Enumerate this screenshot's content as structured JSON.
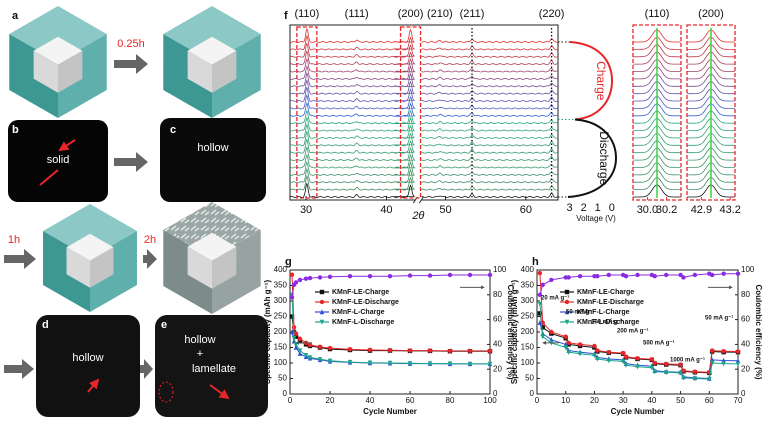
{
  "schematic": {
    "a": "a",
    "b": "b",
    "c": "c",
    "d": "d",
    "e": "e",
    "time1": "0.25h",
    "time2": "1h",
    "time3": "2h",
    "b_text": "solid",
    "c_text": "hollow",
    "d_text": "hollow",
    "e_text1": "hollow",
    "e_text2": "+",
    "e_text3": "lamellate"
  },
  "chart_data": [
    {
      "type": "xrd",
      "label": "f",
      "xlabel": "2θ",
      "xlim": [
        28,
        64
      ],
      "axis_break": [
        43.6,
        47
      ],
      "xticks": [
        30,
        40,
        50,
        60
      ],
      "peaks": [
        {
          "label": "(110)",
          "x": 30.1
        },
        {
          "label": "(111)",
          "x": 36.3
        },
        {
          "label": "(200)",
          "x": 43.0
        },
        {
          "label": "(210)",
          "x": 49.3
        },
        {
          "label": "(211)",
          "x": 53.3
        },
        {
          "label": "(220)",
          "x": 63.2
        }
      ],
      "vlim": [
        3.4,
        -0.3
      ],
      "voltage_ticks": [
        3,
        2,
        1,
        0
      ],
      "voltage_label": "Voltage (V)",
      "charge_label": "Charge",
      "discharge_label": "Discharge",
      "zooms": [
        {
          "label": "(110)",
          "xlim": [
            29.85,
            30.35
          ],
          "xticks": [
            {
              "value": 30,
              "label": "30.0"
            },
            30.2
          ]
        },
        {
          "label": "(200)",
          "xlim": [
            42.75,
            43.25
          ],
          "xticks": [
            42.9,
            43.2
          ]
        }
      ]
    },
    {
      "type": "line",
      "label": "g",
      "xlabel": "Cycle Number",
      "ylabel": "Specific capacity (mAh g⁻¹)",
      "y2label": "Coulombic efficiency (%)",
      "x": [
        1,
        2,
        3,
        5,
        8,
        10,
        15,
        20,
        30,
        40,
        50,
        60,
        70,
        80,
        90,
        100
      ],
      "xlim": [
        0,
        100
      ],
      "xticks": [
        0,
        20,
        40,
        60,
        80,
        100
      ],
      "ylim": [
        0,
        400
      ],
      "yticks": [
        0,
        50,
        100,
        150,
        200,
        250,
        300,
        350,
        400
      ],
      "y2lim": [
        0,
        100
      ],
      "y2ticks": [
        0,
        20,
        40,
        60,
        80,
        100
      ],
      "series": [
        {
          "name": "KMnF-LE-Charge",
          "color": "#111111",
          "marker": "s",
          "values": [
            250,
            200,
            185,
            170,
            160,
            155,
            150,
            145,
            142,
            140,
            140,
            139,
            139,
            138,
            138,
            138
          ]
        },
        {
          "name": "KMnF-LE-Discharge",
          "color": "#e8262a",
          "marker": "o",
          "values": [
            385,
            215,
            195,
            178,
            165,
            158,
            152,
            148,
            144,
            142,
            141,
            140,
            140,
            139,
            139,
            139
          ]
        },
        {
          "name": "KMnF-L-Charge",
          "color": "#2d4fd6",
          "marker": "^",
          "values": [
            200,
            170,
            150,
            130,
            120,
            115,
            110,
            105,
            102,
            100,
            99,
            98,
            98,
            97,
            97,
            97
          ]
        },
        {
          "name": "KMnF-L-Discharge",
          "color": "#1aa58a",
          "marker": "v",
          "values": [
            320,
            180,
            160,
            140,
            125,
            118,
            112,
            107,
            103,
            101,
            100,
            99,
            98,
            98,
            97,
            97
          ]
        },
        {
          "color": "#8a2be2",
          "marker": "o",
          "axis": "y2",
          "values": [
            78,
            88,
            90,
            92,
            93,
            93.5,
            94,
            94.5,
            95,
            95,
            95,
            95.5,
            95.5,
            96,
            96,
            96
          ]
        }
      ]
    },
    {
      "type": "line",
      "label": "h",
      "xlabel": "Cycle Number",
      "ylabel": "Specific capacity (mAh g⁻¹)",
      "y2label": "Coulombic efficiency (%)",
      "x": [
        1,
        2,
        5,
        10,
        11,
        15,
        20,
        21,
        25,
        30,
        31,
        35,
        40,
        41,
        45,
        50,
        51,
        55,
        60,
        61,
        65,
        70
      ],
      "xlim": [
        0,
        70
      ],
      "xticks": [
        0,
        10,
        20,
        30,
        40,
        50,
        60,
        70
      ],
      "ylim": [
        0,
        400
      ],
      "yticks": [
        0,
        50,
        100,
        150,
        200,
        250,
        300,
        350,
        400
      ],
      "y2lim": [
        0,
        100
      ],
      "y2ticks": [
        0,
        20,
        40,
        60,
        80,
        100
      ],
      "series": [
        {
          "name": "KMnF-LE-Charge",
          "color": "#111111",
          "marker": "s",
          "values": [
            260,
            215,
            195,
            180,
            160,
            155,
            150,
            137,
            133,
            130,
            118,
            113,
            110,
            98,
            95,
            93,
            73,
            70,
            68,
            137,
            135,
            135
          ]
        },
        {
          "name": "KMnF-LE-Discharge",
          "color": "#e8262a",
          "marker": "o",
          "values": [
            390,
            230,
            200,
            185,
            165,
            160,
            155,
            140,
            135,
            132,
            120,
            115,
            112,
            100,
            97,
            95,
            75,
            72,
            70,
            140,
            138,
            137
          ]
        },
        {
          "name": "KMnF-L-Charge",
          "color": "#2d4fd6",
          "marker": "^",
          "values": [
            230,
            195,
            175,
            160,
            140,
            135,
            130,
            118,
            113,
            110,
            98,
            93,
            90,
            75,
            72,
            70,
            55,
            52,
            50,
            110,
            108,
            107
          ]
        },
        {
          "name": "KMnF-L-Discharge",
          "color": "#1aa58a",
          "marker": "v",
          "values": [
            290,
            185,
            165,
            150,
            135,
            130,
            125,
            113,
            108,
            105,
            93,
            88,
            85,
            72,
            70,
            68,
            52,
            50,
            48,
            100,
            98,
            97
          ]
        },
        {
          "color": "#8a2be2",
          "marker": "o",
          "axis": "y2",
          "values": [
            80,
            88,
            92,
            94,
            94,
            95,
            95,
            95,
            96,
            96,
            95,
            96,
            96,
            95,
            96,
            96,
            94,
            96,
            97,
            96,
            97,
            97
          ]
        }
      ],
      "annotations": [
        "20 mA g⁻¹",
        "50 mA g⁻¹",
        "100 mA g⁻¹",
        "200 mA g⁻¹",
        "500 mA g⁻¹",
        "1000 mA g⁻¹",
        "50 mA g⁻¹"
      ]
    }
  ]
}
